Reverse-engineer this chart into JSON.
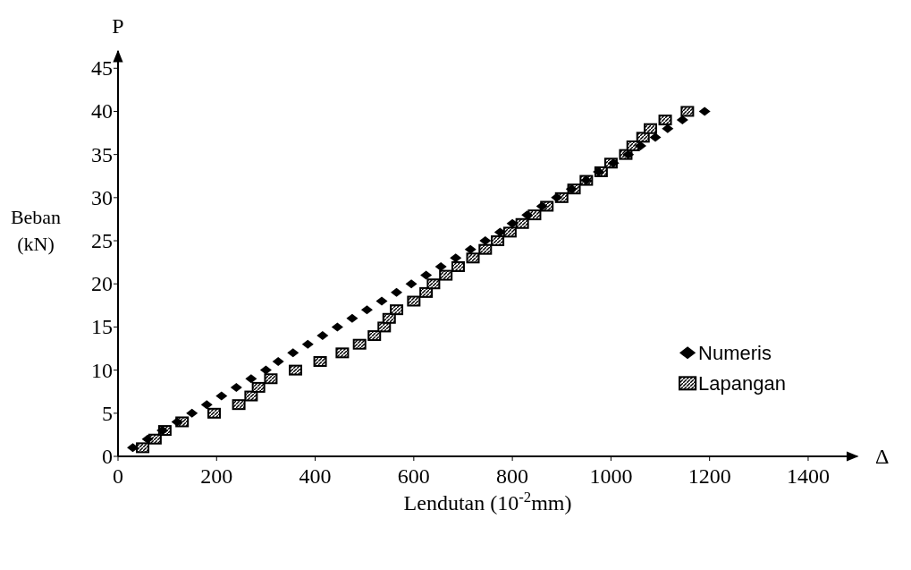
{
  "chart_data": {
    "type": "scatter",
    "xlabel": "Lendutan (10$^{-2}$mm)",
    "ylabel": "Beban\n(kN)",
    "annotations": [
      "P",
      "Δ"
    ],
    "xlim": [
      0,
      1500
    ],
    "xticks": [
      0,
      200,
      400,
      600,
      800,
      1000,
      1200,
      1400
    ],
    "ylim": [
      0,
      47
    ],
    "yticks": [
      0,
      5,
      10,
      15,
      20,
      25,
      30,
      35,
      40,
      45
    ],
    "grid": false,
    "legend": "bottom right",
    "series": [
      {
        "name": "Numeris",
        "color": "#000000",
        "marker": "diamond",
        "x": [
          30,
          60,
          90,
          120,
          150,
          180,
          210,
          240,
          270,
          300,
          325,
          355,
          385,
          415,
          445,
          475,
          505,
          535,
          565,
          595,
          625,
          655,
          685,
          715,
          745,
          775,
          800,
          830,
          860,
          890,
          920,
          950,
          975,
          1005,
          1035,
          1060,
          1090,
          1115,
          1145,
          1190
        ],
        "values": [
          1,
          2,
          3,
          4,
          5,
          6,
          7,
          8,
          9,
          10,
          11,
          12,
          13,
          14,
          15,
          16,
          17,
          18,
          19,
          20,
          21,
          22,
          23,
          24,
          25,
          26,
          27,
          28,
          29,
          30,
          31,
          32,
          33,
          34,
          35,
          36,
          37,
          38,
          39,
          40
        ]
      },
      {
        "name": "Lapangan",
        "color": "#000000",
        "marker": "square",
        "x": [
          50,
          75,
          95,
          130,
          195,
          245,
          270,
          285,
          310,
          360,
          410,
          455,
          490,
          520,
          540,
          550,
          565,
          600,
          625,
          640,
          665,
          690,
          720,
          745,
          770,
          795,
          820,
          845,
          870,
          900,
          925,
          950,
          980,
          1000,
          1030,
          1045,
          1065,
          1080,
          1110,
          1155
        ],
        "values": [
          1,
          2,
          3,
          4,
          5,
          6,
          7,
          8,
          9,
          10,
          11,
          12,
          13,
          14,
          15,
          16,
          17,
          18,
          19,
          20,
          21,
          22,
          23,
          24,
          25,
          26,
          27,
          28,
          29,
          30,
          31,
          32,
          33,
          34,
          35,
          36,
          37,
          38,
          39,
          40
        ]
      }
    ]
  }
}
